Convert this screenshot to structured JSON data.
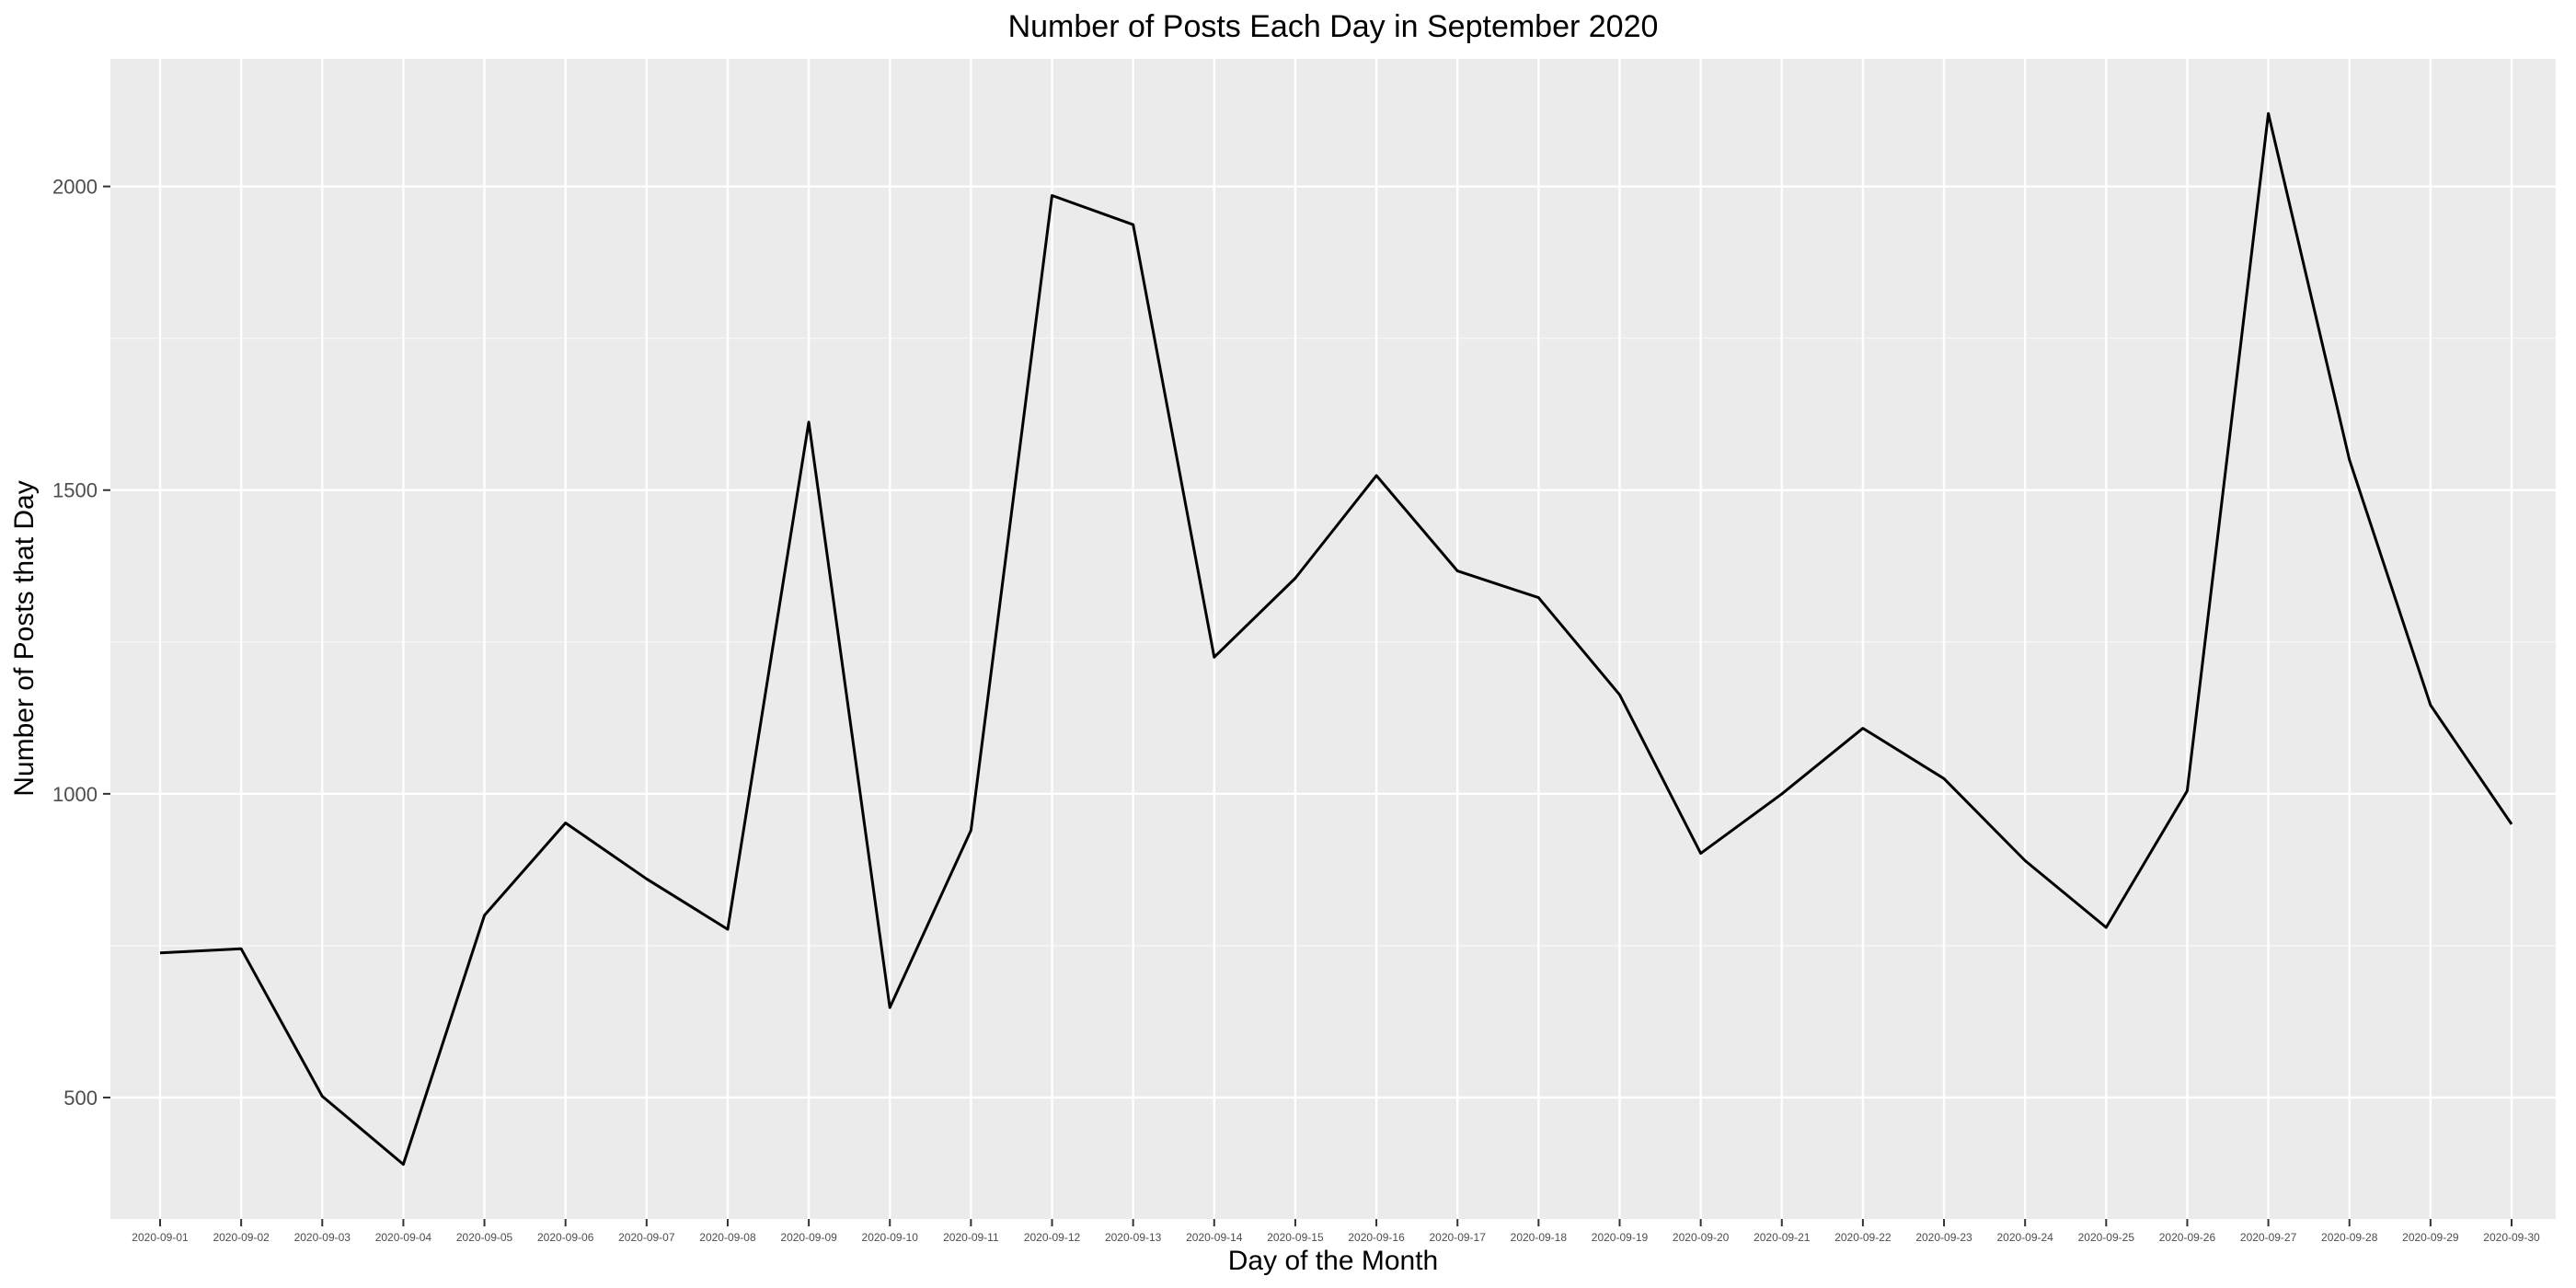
{
  "chart_data": {
    "type": "line",
    "title": "Number of Posts Each Day in September 2020",
    "xlabel": "Day of the Month",
    "ylabel": "Number of Posts that Day",
    "categories": [
      "2020-09-01",
      "2020-09-02",
      "2020-09-03",
      "2020-09-04",
      "2020-09-05",
      "2020-09-06",
      "2020-09-07",
      "2020-09-08",
      "2020-09-09",
      "2020-09-10",
      "2020-09-11",
      "2020-09-12",
      "2020-09-13",
      "2020-09-14",
      "2020-09-15",
      "2020-09-16",
      "2020-09-17",
      "2020-09-18",
      "2020-09-19",
      "2020-09-20",
      "2020-09-21",
      "2020-09-22",
      "2020-09-23",
      "2020-09-24",
      "2020-09-25",
      "2020-09-26",
      "2020-09-27",
      "2020-09-28",
      "2020-09-29",
      "2020-09-30"
    ],
    "series": [
      {
        "values": [
          738,
          745,
          502,
          390,
          800,
          952,
          860,
          777,
          1612,
          648,
          940,
          1985,
          1937,
          1225,
          1355,
          1524,
          1367,
          1323,
          1163,
          902,
          1000,
          1108,
          1025,
          890,
          780,
          1005,
          2120,
          1550,
          1146,
          950
        ]
      }
    ],
    "ylim": [
      300,
      2210
    ],
    "yticks": [
      500,
      1000,
      1500,
      2000
    ],
    "grid": true,
    "legend": "none",
    "colors": {
      "panel": "#ebebeb",
      "grid_major": "#ffffff",
      "line": "#000000",
      "tick": "#333333"
    }
  }
}
